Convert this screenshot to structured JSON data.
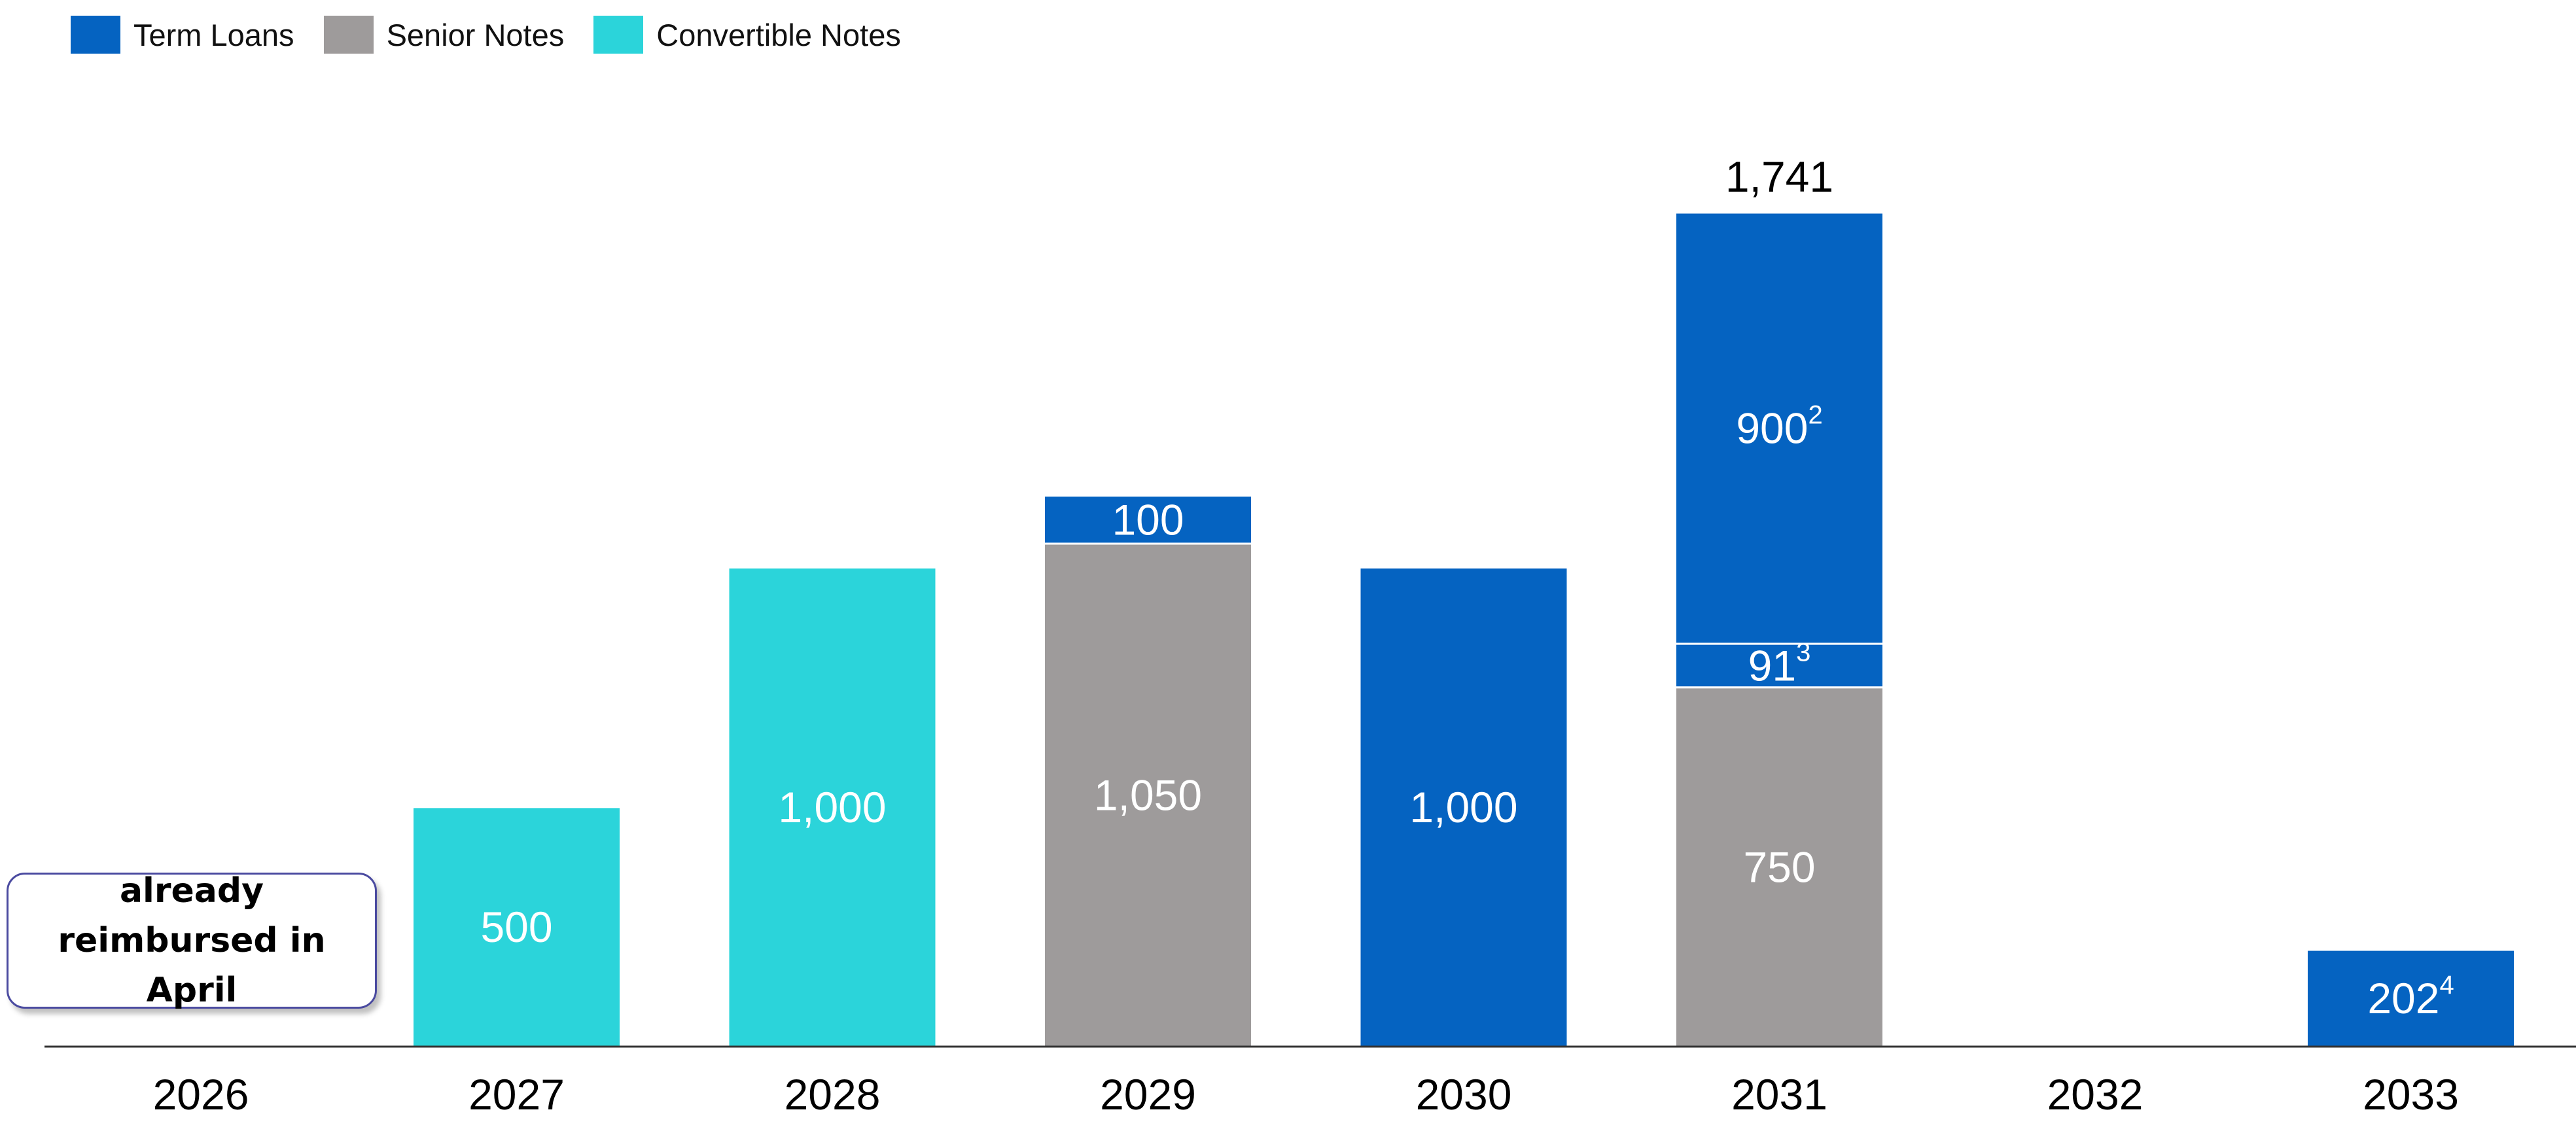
{
  "legend": [
    {
      "label": "Term Loans",
      "color": "#0563C1"
    },
    {
      "label": "Senior Notes",
      "color": "#9E9B9B"
    },
    {
      "label": "Convertible Notes",
      "color": "#2BD4DA"
    }
  ],
  "note": {
    "text": "already reimbursed in April"
  },
  "chart_data": {
    "type": "bar",
    "stacked": true,
    "categories": [
      "2026",
      "2027",
      "2028",
      "2029",
      "2030",
      "2031",
      "2032",
      "2033"
    ],
    "series": [
      {
        "name": "Convertible Notes",
        "color": "#2BD4DA",
        "values": [
          0,
          500,
          1000,
          0,
          0,
          0,
          0,
          0
        ]
      },
      {
        "name": "Senior Notes",
        "color": "#9E9B9B",
        "values": [
          0,
          0,
          0,
          1050,
          0,
          750,
          0,
          0
        ]
      }
    ],
    "term_loan_segments": [
      {
        "category": "2029",
        "value": 100,
        "label": "100",
        "sup": ""
      },
      {
        "category": "2030",
        "value": 1000,
        "label": "1,000",
        "sup": ""
      },
      {
        "category": "2031",
        "value": 91,
        "label": "91",
        "sup": "3"
      },
      {
        "category": "2031",
        "value": 900,
        "label": "900",
        "sup": "2"
      },
      {
        "category": "2033",
        "value": 202,
        "label": "202",
        "sup": "4"
      }
    ],
    "segment_labels": {
      "2027": "500",
      "2028": "1,000",
      "2029": "1,050",
      "2031": "750"
    },
    "totals": [
      {
        "category": "2031",
        "label": "1,741"
      }
    ],
    "ylim": [
      0,
      1741
    ],
    "grid": false,
    "legend_position": "top-left"
  }
}
